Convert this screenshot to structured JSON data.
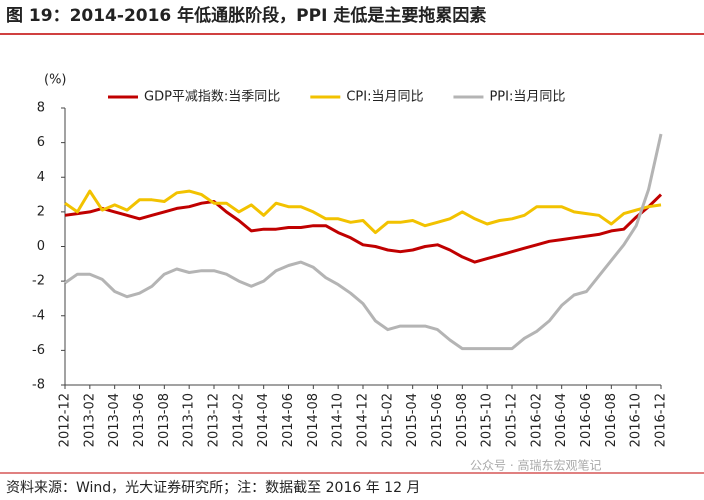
{
  "chart_data": {
    "type": "line",
    "title": "图 19：2014-2016 年低通胀阶段，PPI 走低是主要拖累因素",
    "y_unit_label": "(%)",
    "source": "资料来源：Wind，光大证券研究所；注：数据截至 2016 年 12 月",
    "watermark": "公众号 · 高瑞东宏观笔记",
    "categories": [
      "2012-12",
      null,
      "2013-02",
      null,
      "2013-04",
      null,
      "2013-06",
      null,
      "2013-08",
      null,
      "2013-10",
      null,
      "2013-12",
      null,
      "2014-02",
      null,
      "2014-04",
      null,
      "2014-06",
      null,
      "2014-08",
      null,
      "2014-10",
      null,
      "2014-12",
      null,
      "2015-02",
      null,
      "2015-04",
      null,
      "2015-06",
      null,
      "2015-08",
      null,
      "2015-10",
      null,
      "2015-12",
      null,
      "2016-02",
      null,
      "2016-04",
      null,
      "2016-06",
      null,
      "2016-08",
      null,
      "2016-10",
      null,
      "2016-12"
    ],
    "series": [
      {
        "name": "GDP平减指数:当季同比",
        "color": "#c00000",
        "values": [
          1.8,
          1.9,
          2.0,
          2.2,
          2.0,
          1.8,
          1.6,
          1.8,
          2.0,
          2.2,
          2.3,
          2.5,
          2.6,
          2.0,
          1.5,
          0.9,
          1.0,
          1.0,
          1.1,
          1.1,
          1.2,
          1.2,
          0.8,
          0.5,
          0.1,
          0.0,
          -0.2,
          -0.3,
          -0.2,
          0.0,
          0.1,
          -0.2,
          -0.6,
          -0.9,
          -0.7,
          -0.5,
          -0.3,
          -0.1,
          0.1,
          0.3,
          0.4,
          0.5,
          0.6,
          0.7,
          0.9,
          1.0,
          1.7,
          2.3,
          3.0
        ]
      },
      {
        "name": "CPI:当月同比",
        "color": "#f2c200",
        "values": [
          2.5,
          2.0,
          3.2,
          2.1,
          2.4,
          2.1,
          2.7,
          2.7,
          2.6,
          3.1,
          3.2,
          3.0,
          2.5,
          2.5,
          2.0,
          2.4,
          1.8,
          2.5,
          2.3,
          2.3,
          2.0,
          1.6,
          1.6,
          1.4,
          1.5,
          0.8,
          1.4,
          1.4,
          1.5,
          1.2,
          1.4,
          1.6,
          2.0,
          1.6,
          1.3,
          1.5,
          1.6,
          1.8,
          2.3,
          2.3,
          2.3,
          2.0,
          1.9,
          1.8,
          1.3,
          1.9,
          2.1,
          2.3,
          2.4
        ]
      },
      {
        "name": "PPI:当月同比",
        "color": "#b4b4b4",
        "values": [
          -2.1,
          -1.6,
          -1.6,
          -1.9,
          -2.6,
          -2.9,
          -2.7,
          -2.3,
          -1.6,
          -1.3,
          -1.5,
          -1.4,
          -1.4,
          -1.6,
          -2.0,
          -2.3,
          -2.0,
          -1.4,
          -1.1,
          -0.9,
          -1.2,
          -1.8,
          -2.2,
          -2.7,
          -3.3,
          -4.3,
          -4.8,
          -4.6,
          -4.6,
          -4.6,
          -4.8,
          -5.4,
          -5.9,
          -5.9,
          -5.9,
          -5.9,
          -5.9,
          -5.3,
          -4.9,
          -4.3,
          -3.4,
          -2.8,
          -2.6,
          -1.7,
          -0.8,
          0.1,
          1.2,
          3.3,
          6.5
        ]
      }
    ],
    "ylim": [
      -8,
      8
    ],
    "yticks": [
      -8,
      -6,
      -4,
      -2,
      0,
      2,
      4,
      6,
      8
    ],
    "grid": false,
    "legend": "top"
  }
}
